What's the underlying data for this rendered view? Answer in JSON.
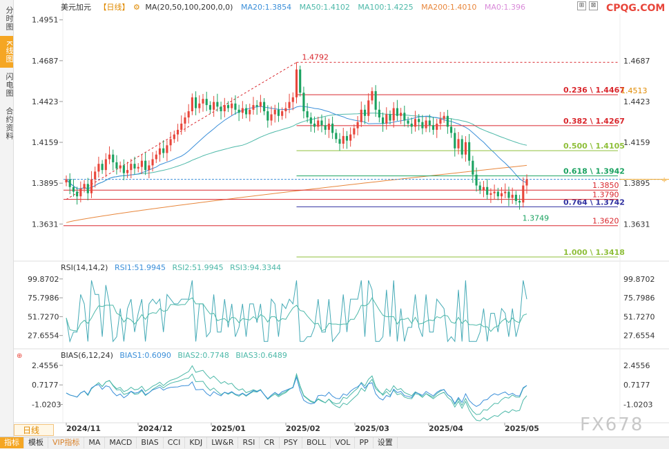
{
  "sidebar": {
    "tabs": [
      {
        "label": "分时图",
        "active": false
      },
      {
        "label": "K线图",
        "active": true
      },
      {
        "label": "闪电图",
        "active": false
      },
      {
        "label": "合约资料",
        "active": false
      }
    ]
  },
  "header": {
    "symbol": "美元加元",
    "period": "【日线】",
    "ma_label": "MA(20,50,100,200,0,0)",
    "ma20": "MA20:1.3854",
    "ma50": "MA50:1.4102",
    "ma100": "MA100:1.4225",
    "ma200": "MA200:1.4010",
    "ma0": "MA0:1.396",
    "brand": "CPQG.COM"
  },
  "colors": {
    "up": "#e8463b",
    "down": "#1aa260",
    "ma20": "#3b8fd9",
    "ma50": "#4cb8a8",
    "ma200": "#e8863b",
    "fib": "#8fbf3a",
    "level": "#d9262c"
  },
  "chart_data": {
    "type": "candlestick",
    "y_ticks_left": [
      "1.4951",
      "1.4687",
      "1.4423",
      "1.4159",
      "1.3895",
      "1.3631"
    ],
    "y_ticks_right": [
      "1.4687",
      "1.4423",
      "1.4159",
      "1.3895",
      "1.3631"
    ],
    "ylim": [
      1.34,
      1.499
    ],
    "x_labels": [
      "2024/11",
      "2024/12",
      "2025/01",
      "2025/02",
      "2025/03",
      "2025/04",
      "2025/05"
    ],
    "n_bars": 129,
    "current_price": "1.4513",
    "peak_label": "1.4792",
    "low_label": "1.3749",
    "fib_levels": [
      {
        "label": "0.236 \\ 1.4467",
        "value": 1.4467,
        "color": "#d9262c"
      },
      {
        "label": "0.382 \\ 1.4267",
        "value": 1.4267,
        "color": "#d9262c"
      },
      {
        "label": "0.500 \\ 1.4105",
        "value": 1.4105,
        "color": "#8fbf3a"
      },
      {
        "label": "0.618 \\ 1.3942",
        "value": 1.3942,
        "color": "#1aa260"
      },
      {
        "label": "0.764 \\ 1.3742",
        "value": 1.3742,
        "color": "#3030a0"
      },
      {
        "label": "1.000 \\ 1.3418",
        "value": 1.3418,
        "color": "#8fbf3a"
      }
    ],
    "levels": [
      {
        "label": "1.3850",
        "value": 1.385
      },
      {
        "label": "1.3790",
        "value": 1.379
      },
      {
        "label": "1.3620",
        "value": 1.362
      }
    ],
    "closes": [
      1.392,
      1.387,
      1.384,
      1.381,
      1.386,
      1.389,
      1.383,
      1.392,
      1.397,
      1.402,
      1.398,
      1.405,
      1.408,
      1.403,
      1.399,
      1.401,
      1.396,
      1.398,
      1.402,
      1.399,
      1.4,
      1.404,
      1.398,
      1.401,
      1.405,
      1.408,
      1.412,
      1.409,
      1.414,
      1.418,
      1.421,
      1.424,
      1.428,
      1.432,
      1.436,
      1.445,
      1.438,
      1.441,
      1.444,
      1.44,
      1.437,
      1.442,
      1.439,
      1.436,
      1.44,
      1.438,
      1.441,
      1.437,
      1.435,
      1.438,
      1.434,
      1.437,
      1.44,
      1.439,
      1.442,
      1.436,
      1.43,
      1.434,
      1.437,
      1.433,
      1.436,
      1.438,
      1.442,
      1.445,
      1.463,
      1.448,
      1.436,
      1.432,
      1.428,
      1.426,
      1.43,
      1.427,
      1.424,
      1.428,
      1.422,
      1.418,
      1.415,
      1.42,
      1.417,
      1.421,
      1.425,
      1.429,
      1.437,
      1.433,
      1.443,
      1.449,
      1.437,
      1.432,
      1.428,
      1.434,
      1.43,
      1.438,
      1.433,
      1.435,
      1.43,
      1.428,
      1.426,
      1.431,
      1.429,
      1.425,
      1.43,
      1.427,
      1.424,
      1.428,
      1.431,
      1.433,
      1.426,
      1.422,
      1.412,
      1.418,
      1.408,
      1.416,
      1.404,
      1.395,
      1.388,
      1.385,
      1.387,
      1.382,
      1.383,
      1.384,
      1.381,
      1.383,
      1.384,
      1.38,
      1.382,
      1.378,
      1.377,
      1.388,
      1.392
    ],
    "rsi": {
      "label": "RSI(14,14,2)",
      "rsi1": "RSI1:51.9945",
      "rsi2": "RSI2:51.9945",
      "rsi3": "RSI3:94.3344",
      "ticks": [
        "99.8702",
        "75.7986",
        "51.7270",
        "27.6554"
      ],
      "ylim": [
        15,
        105
      ]
    },
    "bias": {
      "label": "BIAS(6,12,24)",
      "bias1": "BIAS1:0.6090",
      "bias2": "BIAS2:0.7748",
      "bias3": "BIAS3:0.6489",
      "ticks": [
        "2.4556",
        "0.7177",
        "-1.0203"
      ],
      "ylim": [
        -2.4,
        3.0
      ]
    }
  },
  "bottom": {
    "day_button": "日线",
    "tabs": [
      "指标",
      "模板",
      "VIP指标",
      "MA",
      "MACD",
      "BIAS",
      "CCI",
      "KDJ",
      "LW&R",
      "RSI",
      "CR",
      "PSY",
      "BOLL",
      "VOL",
      "PP",
      "设置"
    ]
  },
  "watermark": "FX678"
}
